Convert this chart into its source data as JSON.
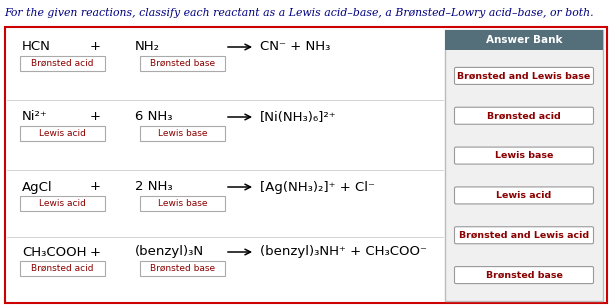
{
  "title": "For the given reactions, classify each reactant as a Lewis acid–base, a Brønsted–Lowry acid–base, or both.",
  "bg_color": "#ffffff",
  "reactions": [
    {
      "reactant1": "HCN",
      "plus": "+",
      "reactant2": "NH₂",
      "product": "CN⁻ + NH₃",
      "label1": "Brønsted acid",
      "label2": "Brønsted base"
    },
    {
      "reactant1": "Ni²⁺",
      "plus": "+",
      "reactant2": "6 NH₃",
      "product": "[Ni(NH₃)₆]²⁺",
      "label1": "Lewis acid",
      "label2": "Lewis base"
    },
    {
      "reactant1": "AgCl",
      "plus": "+",
      "reactant2": "2 NH₃",
      "product": "[Ag(NH₃)₂]⁺ + Cl⁻",
      "label1": "Lewis acid",
      "label2": "Lewis base"
    },
    {
      "reactant1": "CH₃COOH",
      "plus": "+",
      "reactant2": "(benzyl)₃N",
      "product": "(benzyl)₃NH⁺ + CH₃COO⁻",
      "label1": "Brønsted acid",
      "label2": "Brønsted base"
    }
  ],
  "answer_bank_title": "Answer Bank",
  "answer_bank_items": [
    "Brønsted and Lewis base",
    "Brønsted acid",
    "Lewis base",
    "Lewis acid",
    "Brønsted and Lewis acid",
    "Brønsted base"
  ],
  "answer_bank_header_color": "#546e7a",
  "answer_bank_header_text_color": "#ffffff",
  "answer_bank_bg_color": "#f0f0f0",
  "label_text_color": "#8b0000",
  "reaction_text_color": "#000000",
  "main_border_color": "#cc0000",
  "title_color": "#000080",
  "title_fontsize": 7.8,
  "reaction_fontsize": 9.5,
  "label_fontsize": 6.5,
  "ab_item_fontsize": 6.8
}
